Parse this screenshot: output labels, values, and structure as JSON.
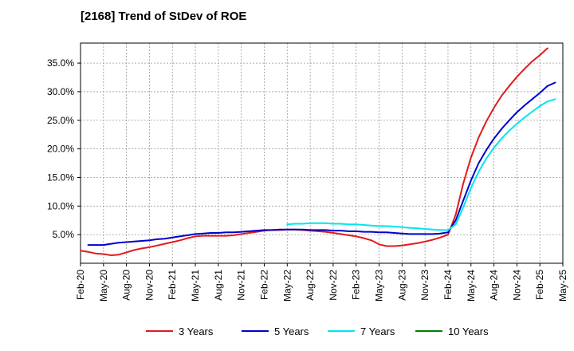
{
  "chart_data": {
    "type": "line",
    "title": "[2168]  Trend of StDev of ROE",
    "xlabel": "",
    "ylabel": "",
    "x_ticks": [
      "Feb-20",
      "May-20",
      "Aug-20",
      "Nov-20",
      "Feb-21",
      "May-21",
      "Aug-21",
      "Nov-21",
      "Feb-22",
      "May-22",
      "Aug-22",
      "Nov-22",
      "Feb-23",
      "May-23",
      "Aug-23",
      "Nov-23",
      "Feb-24",
      "May-24",
      "Aug-24",
      "Nov-24",
      "Feb-25",
      "May-25"
    ],
    "y_ticks": [
      5.0,
      10.0,
      15.0,
      20.0,
      25.0,
      30.0,
      35.0
    ],
    "y_tick_labels": [
      "5.0%",
      "10.0%",
      "15.0%",
      "20.0%",
      "25.0%",
      "30.0%",
      "35.0%"
    ],
    "ylim": [
      0.0,
      38.5
    ],
    "grid": true,
    "legend_position": "bottom",
    "series": [
      {
        "name": "3 Years",
        "color": "#e31a1c",
        "points": [
          [
            "Feb-20",
            2.2
          ],
          [
            "Mar-20",
            2.0
          ],
          [
            "Apr-20",
            1.7
          ],
          [
            "May-20",
            1.6
          ],
          [
            "Jun-20",
            1.4
          ],
          [
            "Jul-20",
            1.5
          ],
          [
            "Aug-20",
            1.9
          ],
          [
            "Sep-20",
            2.3
          ],
          [
            "Oct-20",
            2.6
          ],
          [
            "Nov-20",
            2.8
          ],
          [
            "Dec-20",
            3.1
          ],
          [
            "Jan-21",
            3.4
          ],
          [
            "Feb-21",
            3.7
          ],
          [
            "Mar-21",
            4.0
          ],
          [
            "Apr-21",
            4.4
          ],
          [
            "May-21",
            4.7
          ],
          [
            "Jun-21",
            4.8
          ],
          [
            "Jul-21",
            4.8
          ],
          [
            "Aug-21",
            4.8
          ],
          [
            "Sep-21",
            4.8
          ],
          [
            "Oct-21",
            4.9
          ],
          [
            "Nov-21",
            5.1
          ],
          [
            "Dec-21",
            5.3
          ],
          [
            "Jan-22",
            5.5
          ],
          [
            "Feb-22",
            5.7
          ],
          [
            "Mar-22",
            5.8
          ],
          [
            "Apr-22",
            5.8
          ],
          [
            "May-22",
            5.9
          ],
          [
            "Jun-22",
            5.9
          ],
          [
            "Jul-22",
            5.8
          ],
          [
            "Aug-22",
            5.7
          ],
          [
            "Sep-22",
            5.6
          ],
          [
            "Oct-22",
            5.5
          ],
          [
            "Nov-22",
            5.3
          ],
          [
            "Dec-22",
            5.1
          ],
          [
            "Jan-23",
            4.9
          ],
          [
            "Feb-23",
            4.7
          ],
          [
            "Mar-23",
            4.4
          ],
          [
            "Apr-23",
            4.0
          ],
          [
            "May-23",
            3.3
          ],
          [
            "Jun-23",
            3.0
          ],
          [
            "Jul-23",
            3.0
          ],
          [
            "Aug-23",
            3.1
          ],
          [
            "Sep-23",
            3.3
          ],
          [
            "Oct-23",
            3.5
          ],
          [
            "Nov-23",
            3.8
          ],
          [
            "Dec-23",
            4.1
          ],
          [
            "Jan-24",
            4.5
          ],
          [
            "Feb-24",
            5.0
          ],
          [
            "Mar-24",
            8.5
          ],
          [
            "Apr-24",
            14.0
          ],
          [
            "May-24",
            18.5
          ],
          [
            "Jun-24",
            22.0
          ],
          [
            "Jul-24",
            24.8
          ],
          [
            "Aug-24",
            27.2
          ],
          [
            "Sep-24",
            29.3
          ],
          [
            "Oct-24",
            31.0
          ],
          [
            "Nov-24",
            32.6
          ],
          [
            "Dec-24",
            34.0
          ],
          [
            "Jan-25",
            35.3
          ],
          [
            "Feb-25",
            36.4
          ],
          [
            "Mar-25",
            37.6
          ]
        ]
      },
      {
        "name": "5 Years",
        "color": "#0000cc",
        "points": [
          [
            "Mar-20",
            3.2
          ],
          [
            "Apr-20",
            3.2
          ],
          [
            "May-20",
            3.2
          ],
          [
            "Jun-20",
            3.4
          ],
          [
            "Jul-20",
            3.6
          ],
          [
            "Aug-20",
            3.7
          ],
          [
            "Sep-20",
            3.8
          ],
          [
            "Oct-20",
            3.9
          ],
          [
            "Nov-20",
            4.0
          ],
          [
            "Dec-20",
            4.2
          ],
          [
            "Jan-21",
            4.3
          ],
          [
            "Feb-21",
            4.5
          ],
          [
            "Mar-21",
            4.7
          ],
          [
            "Apr-21",
            4.9
          ],
          [
            "May-21",
            5.1
          ],
          [
            "Jun-21",
            5.2
          ],
          [
            "Jul-21",
            5.3
          ],
          [
            "Aug-21",
            5.3
          ],
          [
            "Sep-21",
            5.4
          ],
          [
            "Oct-21",
            5.4
          ],
          [
            "Nov-21",
            5.5
          ],
          [
            "Dec-21",
            5.6
          ],
          [
            "Jan-22",
            5.7
          ],
          [
            "Feb-22",
            5.8
          ],
          [
            "Mar-22",
            5.8
          ],
          [
            "Apr-22",
            5.9
          ],
          [
            "May-22",
            5.9
          ],
          [
            "Jun-22",
            5.9
          ],
          [
            "Jul-22",
            5.9
          ],
          [
            "Aug-22",
            5.8
          ],
          [
            "Sep-22",
            5.8
          ],
          [
            "Oct-22",
            5.8
          ],
          [
            "Nov-22",
            5.7
          ],
          [
            "Dec-22",
            5.7
          ],
          [
            "Jan-23",
            5.6
          ],
          [
            "Feb-23",
            5.6
          ],
          [
            "Mar-23",
            5.5
          ],
          [
            "Apr-23",
            5.5
          ],
          [
            "May-23",
            5.4
          ],
          [
            "Jun-23",
            5.4
          ],
          [
            "Jul-23",
            5.3
          ],
          [
            "Aug-23",
            5.2
          ],
          [
            "Sep-23",
            5.1
          ],
          [
            "Oct-23",
            5.1
          ],
          [
            "Nov-23",
            5.1
          ],
          [
            "Dec-23",
            5.1
          ],
          [
            "Jan-24",
            5.2
          ],
          [
            "Feb-24",
            5.4
          ],
          [
            "Mar-24",
            7.5
          ],
          [
            "Apr-24",
            11.0
          ],
          [
            "May-24",
            14.5
          ],
          [
            "Jun-24",
            17.5
          ],
          [
            "Jul-24",
            19.8
          ],
          [
            "Aug-24",
            21.8
          ],
          [
            "Sep-24",
            23.5
          ],
          [
            "Oct-24",
            25.0
          ],
          [
            "Nov-24",
            26.4
          ],
          [
            "Dec-24",
            27.6
          ],
          [
            "Jan-25",
            28.7
          ],
          [
            "Feb-25",
            29.8
          ],
          [
            "Mar-25",
            31.0
          ],
          [
            "Apr-25",
            31.6
          ]
        ]
      },
      {
        "name": "7 Years",
        "color": "#00e5ee",
        "points": [
          [
            "May-22",
            6.8
          ],
          [
            "Jun-22",
            6.9
          ],
          [
            "Jul-22",
            6.9
          ],
          [
            "Aug-22",
            7.0
          ],
          [
            "Sep-22",
            7.0
          ],
          [
            "Oct-22",
            7.0
          ],
          [
            "Nov-22",
            6.9
          ],
          [
            "Dec-22",
            6.9
          ],
          [
            "Jan-23",
            6.8
          ],
          [
            "Feb-23",
            6.8
          ],
          [
            "Mar-23",
            6.7
          ],
          [
            "Apr-23",
            6.6
          ],
          [
            "May-23",
            6.5
          ],
          [
            "Jun-23",
            6.5
          ],
          [
            "Jul-23",
            6.4
          ],
          [
            "Aug-23",
            6.3
          ],
          [
            "Sep-23",
            6.2
          ],
          [
            "Oct-23",
            6.1
          ],
          [
            "Nov-23",
            6.0
          ],
          [
            "Dec-23",
            5.9
          ],
          [
            "Jan-24",
            5.8
          ],
          [
            "Feb-24",
            5.8
          ],
          [
            "Mar-24",
            6.8
          ],
          [
            "Apr-24",
            9.8
          ],
          [
            "May-24",
            13.2
          ],
          [
            "Jun-24",
            16.0
          ],
          [
            "Jul-24",
            18.3
          ],
          [
            "Aug-24",
            20.2
          ],
          [
            "Sep-24",
            21.8
          ],
          [
            "Oct-24",
            23.2
          ],
          [
            "Nov-24",
            24.4
          ],
          [
            "Dec-24",
            25.5
          ],
          [
            "Jan-25",
            26.5
          ],
          [
            "Feb-25",
            27.5
          ],
          [
            "Mar-25",
            28.3
          ],
          [
            "Apr-25",
            28.7
          ]
        ]
      },
      {
        "name": "10 Years",
        "color": "#008000",
        "points": []
      }
    ]
  }
}
